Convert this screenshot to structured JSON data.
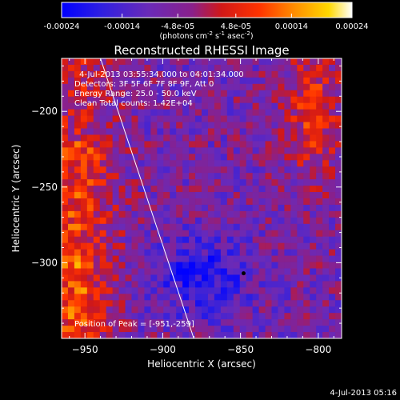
{
  "chart_data": {
    "type": "heatmap",
    "title": "Reconstructed RHESSI Image",
    "xlabel": "Heliocentric X (arcsec)",
    "ylabel": "Heliocentric Y (arcsec)",
    "xlim": [
      -965,
      -785
    ],
    "ylim": [
      -350,
      -165
    ],
    "x_ticks": [
      -950,
      -900,
      -850,
      -800
    ],
    "y_ticks": [
      -200,
      -250,
      -300
    ],
    "colorbar": {
      "min": -0.00024,
      "max": 0.00024,
      "tick_values": [
        -0.00024,
        -0.00014,
        -4.8e-05,
        4.8e-05,
        0.00014,
        0.00024
      ],
      "tick_labels": [
        "-0.00024",
        "-0.00014",
        "-4.8e-05",
        "4.8e-05",
        "0.00014",
        "0.00024"
      ],
      "unit_prefix": "(photons cm",
      "unit_exp1": "-2",
      "unit_mid1": " s",
      "unit_exp2": "-1",
      "unit_mid2": " asec",
      "unit_exp3": "-2",
      "unit_suffix": ")"
    },
    "annotations": [
      "4-Jul-2013 03:55:34.000 to 04:01:34.000",
      "Detectors: 3F 5F 6F 7F 8F 9F, Att 0",
      "Energy Range: 25.0 - 50.0 keV",
      "Clean    Total counts: 1.42E+04"
    ],
    "peak_label": "Position of Peak = [-951,-259]",
    "peak": {
      "x": -951,
      "y": -259
    },
    "minimum_marker": {
      "x": -848,
      "y": -307
    },
    "limb_line": [
      [
        -940,
        -165
      ],
      [
        -880,
        -350
      ]
    ],
    "grid": false,
    "legend": "none"
  },
  "footer": {
    "timestamp": "4-Jul-2013 05:16"
  },
  "colors": {
    "background": "#000000",
    "text": "#ffffff",
    "colormap": [
      "#0000ff",
      "#5a28c8",
      "#7a23a8",
      "#b81c30",
      "#ff2200",
      "#ff9000",
      "#ffd400",
      "#ffffff"
    ]
  }
}
